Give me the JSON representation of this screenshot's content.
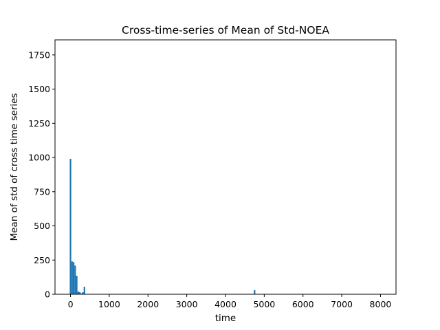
{
  "chart_data": {
    "type": "bar",
    "title": "Cross-time-series of Mean of Std-NOEA",
    "xlabel": "time",
    "ylabel": "Mean of std of cross time series",
    "xlim": [
      -400,
      8400
    ],
    "ylim": [
      0,
      1860
    ],
    "xticks": [
      0,
      1000,
      2000,
      3000,
      4000,
      5000,
      6000,
      7000,
      8000
    ],
    "yticks": [
      0,
      250,
      500,
      750,
      1000,
      1250,
      1500,
      1750
    ],
    "bar_width": 40,
    "bar_color": "#1f77b4",
    "grid": false,
    "legend": "none",
    "bars": [
      {
        "x": 0,
        "y": 990
      },
      {
        "x": 40,
        "y": 240
      },
      {
        "x": 80,
        "y": 235
      },
      {
        "x": 120,
        "y": 210
      },
      {
        "x": 160,
        "y": 135
      },
      {
        "x": 200,
        "y": 20
      },
      {
        "x": 240,
        "y": 15
      },
      {
        "x": 280,
        "y": 5
      },
      {
        "x": 320,
        "y": 15
      },
      {
        "x": 360,
        "y": 55
      },
      {
        "x": 4750,
        "y": 30
      }
    ]
  }
}
